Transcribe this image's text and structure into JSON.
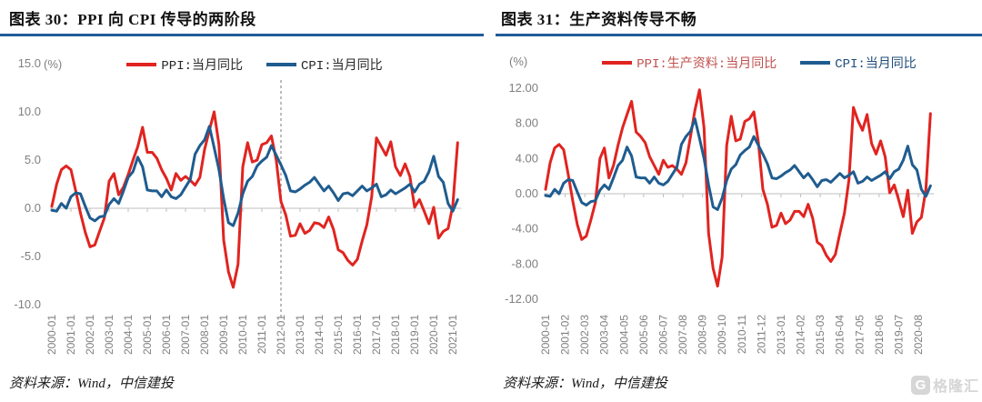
{
  "colors": {
    "ppi_red": "#E02420",
    "cpi_blue": "#1F5C8F",
    "title_rule_blue": "#1F5C99",
    "axis_label_gray": "#7F7F7F",
    "zero_line_gray": "#BFBFBF",
    "dashed_line_gray": "#999999",
    "logo_gray": "#D6D6D6"
  },
  "left_chart": {
    "title": "图表 30：PPI 向 CPI 传导的两阶段",
    "unit": "(%)",
    "source": "资料来源：Wind，中信建投",
    "legend": [
      {
        "label": "PPI:当月同比",
        "color": "#E02420",
        "text_color": "#262626"
      },
      {
        "label": "CPI:当月同比",
        "color": "#1F5C8F",
        "text_color": "#262626"
      }
    ],
    "y_tick_labels": [
      "15.0",
      "10.0",
      "5.0",
      "0.0",
      "-5.0",
      "-10.0"
    ],
    "x_tick_labels": [
      "2000-01",
      "2001-01",
      "2002-01",
      "2003-01",
      "2004-01",
      "2005-01",
      "2006-01",
      "2007-01",
      "2008-01",
      "2009-01",
      "2010-01",
      "2011-01",
      "2012-01",
      "2013-01",
      "2014-01",
      "2015-01",
      "2016-01",
      "2017-01",
      "2018-01",
      "2019-01",
      "2020-01",
      "2021-01"
    ]
  },
  "right_chart": {
    "title": "图表 31：生产资料传导不畅",
    "unit": "(%)",
    "source": "资料来源：Wind，中信建投",
    "legend": [
      {
        "label": "PPI:生产资料:当月同比",
        "color": "#E02420",
        "text_color": "#C0504D"
      },
      {
        "label": "CPI:当月同比",
        "color": "#1F5C8F",
        "text_color": "#1F4E79"
      }
    ],
    "y_tick_labels": [
      "12.00",
      "8.00",
      "4.00",
      "0.00",
      "-4.00",
      "-8.00",
      "-12.00"
    ],
    "x_tick_labels": [
      "2000-01",
      "2001-02",
      "2002-03",
      "2003-04",
      "2004-05",
      "2005-06",
      "2006-07",
      "2007-08",
      "2008-09",
      "2009-10",
      "2010-11",
      "2011-12",
      "2013-01",
      "2014-02",
      "2015-03",
      "2016-04",
      "2017-05",
      "2018-06",
      "2019-07",
      "2020-08"
    ]
  },
  "footer": {
    "logo_g": "G",
    "logo_text": "格隆汇"
  },
  "chart_data": [
    {
      "type": "line",
      "title": "图表 30：PPI 向 CPI 传导的两阶段",
      "ylabel": "%",
      "x_start": "2000-01",
      "x_end": "2021-04",
      "x_interval_months": 3,
      "x_tick_every_months": 12,
      "ylim": [
        -10,
        15
      ],
      "y_ticks": [
        15,
        10,
        5,
        0,
        -5,
        -10
      ],
      "grid": false,
      "legend_position": "top-center",
      "annotation": "gray dashed vertical line at 2012-01",
      "series": [
        {
          "name": "PPI:当月同比",
          "values": [
            0.2,
            2.5,
            4.0,
            4.4,
            4.0,
            1.8,
            -0.5,
            -2.5,
            -4.0,
            -3.8,
            -2.4,
            -1.0,
            2.8,
            3.6,
            1.4,
            2.2,
            3.5,
            5.0,
            6.4,
            8.4,
            5.8,
            5.8,
            5.2,
            4.0,
            3.1,
            1.9,
            3.6,
            2.9,
            3.3,
            2.9,
            2.4,
            3.2,
            6.1,
            8.1,
            10.0,
            6.6,
            -3.3,
            -6.6,
            -8.2,
            -5.8,
            4.3,
            6.8,
            4.8,
            5.0,
            6.6,
            6.8,
            7.5,
            5.0,
            0.7,
            -0.7,
            -2.9,
            -2.8,
            -1.6,
            -2.6,
            -2.3,
            -1.5,
            -1.6,
            -2.0,
            -0.9,
            -2.2,
            -4.3,
            -4.6,
            -5.4,
            -5.9,
            -5.3,
            -3.4,
            -1.7,
            1.2,
            7.3,
            6.4,
            5.5,
            6.9,
            4.3,
            3.4,
            4.6,
            3.3,
            0.1,
            0.9,
            -0.3,
            -1.6,
            0.1,
            -3.1,
            -2.4,
            -2.1,
            0.3,
            6.8
          ]
        },
        {
          "name": "CPI:当月同比",
          "values": [
            -0.2,
            -0.3,
            0.5,
            0.0,
            1.2,
            1.6,
            1.5,
            0.2,
            -1.0,
            -1.3,
            -0.9,
            -0.8,
            0.4,
            1.0,
            0.5,
            1.8,
            3.2,
            3.8,
            5.3,
            4.3,
            1.9,
            1.8,
            1.8,
            1.2,
            1.9,
            1.2,
            1.0,
            1.4,
            2.2,
            3.0,
            5.6,
            6.5,
            7.1,
            8.5,
            6.3,
            4.0,
            1.0,
            -1.5,
            -1.8,
            -0.5,
            1.5,
            2.8,
            3.3,
            4.4,
            4.9,
            5.3,
            6.5,
            5.5,
            4.5,
            3.4,
            1.8,
            1.7,
            2.0,
            2.4,
            2.7,
            3.2,
            2.5,
            1.8,
            2.3,
            1.6,
            0.8,
            1.5,
            1.6,
            1.3,
            1.8,
            2.3,
            1.8,
            2.1,
            2.5,
            1.2,
            1.4,
            1.9,
            1.5,
            1.8,
            2.1,
            2.5,
            1.7,
            2.5,
            2.8,
            3.8,
            5.4,
            3.3,
            2.7,
            0.5,
            -0.3,
            0.9
          ]
        }
      ]
    },
    {
      "type": "line",
      "title": "图表 31：生产资料传导不畅",
      "ylabel": "%",
      "x_start": "2000-01",
      "x_end": "2021-04",
      "x_interval_months": 3,
      "x_tick_every_months": 13,
      "ylim": [
        -12,
        12
      ],
      "y_ticks": [
        12,
        8,
        4,
        0,
        -4,
        -8,
        -12
      ],
      "grid": false,
      "legend_position": "top-center",
      "annotation": "",
      "series": [
        {
          "name": "PPI:生产资料:当月同比",
          "values": [
            0.5,
            3.5,
            5.2,
            5.6,
            5.0,
            2.2,
            -0.8,
            -3.5,
            -5.2,
            -4.8,
            -3.0,
            -1.0,
            4.0,
            5.2,
            1.8,
            3.2,
            5.5,
            7.5,
            9.0,
            10.5,
            7.0,
            6.5,
            5.8,
            4.2,
            3.2,
            2.2,
            3.8,
            3.0,
            3.2,
            2.8,
            2.2,
            3.5,
            6.5,
            9.5,
            11.8,
            7.5,
            -4.5,
            -8.5,
            -10.5,
            -7.2,
            5.5,
            8.8,
            6.0,
            6.2,
            8.2,
            8.5,
            9.3,
            5.8,
            0.5,
            -1.2,
            -3.8,
            -3.6,
            -2.2,
            -3.4,
            -3.0,
            -2.0,
            -2.0,
            -2.6,
            -1.2,
            -2.8,
            -5.5,
            -5.9,
            -7.0,
            -7.7,
            -6.9,
            -4.5,
            -2.2,
            1.6,
            9.8,
            8.3,
            7.2,
            9.0,
            5.7,
            4.5,
            6.0,
            4.2,
            0.1,
            1.0,
            -0.7,
            -2.6,
            0.4,
            -4.5,
            -3.2,
            -2.7,
            0.5,
            9.1
          ]
        },
        {
          "name": "CPI:当月同比",
          "values": [
            -0.2,
            -0.3,
            0.5,
            0.0,
            1.2,
            1.6,
            1.5,
            0.2,
            -1.0,
            -1.3,
            -0.9,
            -0.8,
            0.4,
            1.0,
            0.5,
            1.8,
            3.2,
            3.8,
            5.3,
            4.3,
            1.9,
            1.8,
            1.8,
            1.2,
            1.9,
            1.2,
            1.0,
            1.4,
            2.2,
            3.0,
            5.6,
            6.5,
            7.1,
            8.5,
            6.3,
            4.0,
            1.0,
            -1.5,
            -1.8,
            -0.5,
            1.5,
            2.8,
            3.3,
            4.4,
            4.9,
            5.3,
            6.5,
            5.5,
            4.5,
            3.4,
            1.8,
            1.7,
            2.0,
            2.4,
            2.7,
            3.2,
            2.5,
            1.8,
            2.3,
            1.6,
            0.8,
            1.5,
            1.6,
            1.3,
            1.8,
            2.3,
            1.8,
            2.1,
            2.5,
            1.2,
            1.4,
            1.9,
            1.5,
            1.8,
            2.1,
            2.5,
            1.7,
            2.5,
            2.8,
            3.8,
            5.4,
            3.3,
            2.7,
            0.5,
            -0.3,
            0.9
          ]
        }
      ]
    }
  ]
}
